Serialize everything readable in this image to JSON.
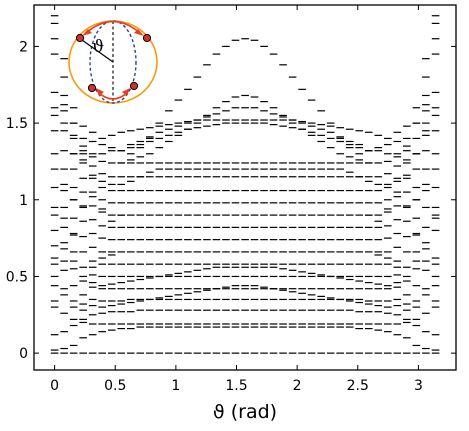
{
  "chart_data": {
    "type": "scatter",
    "marker": "horizontal-dash",
    "title": "",
    "xlabel": "ϑ (rad)",
    "ylabel": "",
    "xlim": [
      -0.17,
      3.31
    ],
    "ylim": [
      -0.11,
      2.27
    ],
    "xticks": [
      0,
      0.5,
      1,
      1.5,
      2,
      2.5,
      3
    ],
    "xtick_labels": [
      "0",
      "0.5",
      "1",
      "1.5",
      "2",
      "2.5",
      "3"
    ],
    "yticks": [
      0,
      0.5,
      1,
      1.5,
      2
    ],
    "ytick_labels": [
      "0",
      "0.5",
      "1",
      "1.5",
      "2"
    ],
    "grid": false,
    "theta_values": [
      0,
      0.0785,
      0.157,
      0.2355,
      0.314,
      0.3925,
      0.471,
      0.5495,
      0.628,
      0.7065,
      0.785,
      0.8635,
      0.942,
      1.0205,
      1.099,
      1.1775,
      1.256,
      1.3345,
      1.413,
      1.4915,
      1.5708,
      1.6485,
      1.727,
      1.8055,
      1.884,
      1.9625,
      2.041,
      2.1195,
      2.198,
      2.2765,
      2.355,
      2.4335,
      2.512,
      2.5905,
      2.669,
      2.7475,
      2.826,
      2.9045,
      2.983,
      3.0615,
      3.1416
    ],
    "series": [
      {
        "y": [
          0,
          0,
          0,
          0,
          0,
          0,
          0,
          0,
          0,
          0,
          0,
          0,
          0,
          0,
          0,
          0,
          0,
          0,
          0,
          0,
          0,
          0,
          0,
          0,
          0,
          0,
          0,
          0,
          0,
          0,
          0,
          0,
          0,
          0,
          0,
          0,
          0,
          0,
          0,
          0,
          0
        ]
      },
      {
        "y": [
          0.02,
          0.03,
          0.05,
          0.1,
          0.12,
          0.14,
          0.15,
          0.16,
          0.16,
          0.17,
          0.17,
          0.17,
          0.17,
          0.17,
          0.17,
          0.17,
          0.17,
          0.17,
          0.17,
          0.17,
          0.17,
          0.17,
          0.17,
          0.17,
          0.17,
          0.17,
          0.17,
          0.17,
          0.17,
          0.17,
          0.17,
          0.17,
          0.16,
          0.16,
          0.15,
          0.14,
          0.12,
          0.1,
          0.05,
          0.03,
          0.02
        ]
      },
      {
        "y": [
          0.3,
          0.26,
          0.22,
          0.2,
          0.19,
          0.19,
          0.19,
          0.19,
          0.19,
          0.19,
          0.19,
          0.19,
          0.19,
          0.19,
          0.19,
          0.19,
          0.19,
          0.19,
          0.19,
          0.19,
          0.19,
          0.19,
          0.19,
          0.19,
          0.19,
          0.19,
          0.19,
          0.19,
          0.19,
          0.19,
          0.19,
          0.19,
          0.19,
          0.19,
          0.19,
          0.19,
          0.19,
          0.2,
          0.22,
          0.26,
          0.3
        ]
      },
      {
        "y": [
          0.5,
          0.42,
          0.34,
          0.28,
          0.25,
          0.26,
          0.27,
          0.27,
          0.27,
          0.28,
          0.28,
          0.28,
          0.28,
          0.28,
          0.28,
          0.28,
          0.28,
          0.28,
          0.28,
          0.28,
          0.28,
          0.28,
          0.28,
          0.28,
          0.28,
          0.28,
          0.28,
          0.28,
          0.28,
          0.28,
          0.28,
          0.28,
          0.27,
          0.27,
          0.27,
          0.26,
          0.25,
          0.28,
          0.34,
          0.42,
          0.5
        ]
      },
      {
        "y": [
          0.62,
          0.54,
          0.44,
          0.38,
          0.35,
          0.34,
          0.34,
          0.34,
          0.35,
          0.35,
          0.35,
          0.35,
          0.35,
          0.35,
          0.35,
          0.35,
          0.35,
          0.35,
          0.35,
          0.35,
          0.35,
          0.35,
          0.35,
          0.35,
          0.35,
          0.35,
          0.35,
          0.35,
          0.35,
          0.35,
          0.35,
          0.35,
          0.35,
          0.34,
          0.34,
          0.34,
          0.35,
          0.38,
          0.44,
          0.54,
          0.62
        ]
      },
      {
        "y": [
          0.8,
          0.68,
          0.55,
          0.47,
          0.43,
          0.42,
          0.42,
          0.42,
          0.42,
          0.42,
          0.42,
          0.42,
          0.42,
          0.42,
          0.42,
          0.42,
          0.42,
          0.42,
          0.42,
          0.42,
          0.42,
          0.42,
          0.42,
          0.42,
          0.42,
          0.42,
          0.42,
          0.42,
          0.42,
          0.42,
          0.42,
          0.42,
          0.42,
          0.42,
          0.42,
          0.42,
          0.43,
          0.47,
          0.55,
          0.68,
          0.8
        ]
      },
      {
        "y": [
          0.95,
          0.82,
          0.66,
          0.56,
          0.51,
          0.5,
          0.5,
          0.5,
          0.5,
          0.5,
          0.5,
          0.5,
          0.5,
          0.5,
          0.5,
          0.5,
          0.5,
          0.5,
          0.5,
          0.5,
          0.5,
          0.5,
          0.5,
          0.5,
          0.5,
          0.5,
          0.5,
          0.5,
          0.5,
          0.5,
          0.5,
          0.5,
          0.5,
          0.5,
          0.5,
          0.5,
          0.51,
          0.56,
          0.66,
          0.82,
          0.95
        ]
      },
      {
        "y": [
          1.08,
          0.95,
          0.77,
          0.66,
          0.6,
          0.58,
          0.58,
          0.58,
          0.58,
          0.58,
          0.58,
          0.58,
          0.58,
          0.58,
          0.58,
          0.58,
          0.58,
          0.58,
          0.58,
          0.58,
          0.58,
          0.58,
          0.58,
          0.58,
          0.58,
          0.58,
          0.58,
          0.58,
          0.58,
          0.58,
          0.58,
          0.58,
          0.58,
          0.58,
          0.58,
          0.58,
          0.6,
          0.66,
          0.77,
          0.95,
          1.08
        ]
      },
      {
        "y": [
          1.3,
          1.06,
          0.88,
          0.76,
          0.69,
          0.66,
          0.66,
          0.66,
          0.66,
          0.66,
          0.66,
          0.66,
          0.66,
          0.66,
          0.66,
          0.66,
          0.66,
          0.66,
          0.66,
          0.66,
          0.66,
          0.66,
          0.66,
          0.66,
          0.66,
          0.66,
          0.66,
          0.66,
          0.66,
          0.66,
          0.66,
          0.66,
          0.66,
          0.66,
          0.66,
          0.66,
          0.69,
          0.76,
          0.88,
          1.06,
          1.3
        ]
      },
      {
        "y": [
          1.45,
          1.2,
          1.0,
          0.86,
          0.78,
          0.75,
          0.74,
          0.74,
          0.74,
          0.74,
          0.74,
          0.74,
          0.74,
          0.74,
          0.74,
          0.74,
          0.74,
          0.74,
          0.74,
          0.74,
          0.74,
          0.74,
          0.74,
          0.74,
          0.74,
          0.74,
          0.74,
          0.74,
          0.74,
          0.74,
          0.74,
          0.74,
          0.74,
          0.74,
          0.74,
          0.75,
          0.78,
          0.86,
          1.0,
          1.2,
          1.45
        ]
      },
      {
        "y": [
          1.6,
          1.32,
          1.08,
          0.95,
          0.87,
          0.83,
          0.82,
          0.82,
          0.82,
          0.82,
          0.82,
          0.82,
          0.82,
          0.82,
          0.82,
          0.82,
          0.82,
          0.82,
          0.82,
          0.82,
          0.82,
          0.82,
          0.82,
          0.82,
          0.82,
          0.82,
          0.82,
          0.82,
          0.82,
          0.82,
          0.82,
          0.82,
          0.82,
          0.82,
          0.82,
          0.83,
          0.87,
          0.95,
          1.08,
          1.32,
          1.6
        ]
      },
      {
        "y": [
          1.7,
          1.45,
          1.2,
          1.05,
          0.96,
          0.92,
          0.9,
          0.9,
          0.9,
          0.9,
          0.9,
          0.9,
          0.9,
          0.9,
          0.9,
          0.9,
          0.9,
          0.9,
          0.9,
          0.9,
          0.9,
          0.9,
          0.9,
          0.9,
          0.9,
          0.9,
          0.9,
          0.9,
          0.9,
          0.9,
          0.9,
          0.9,
          0.9,
          0.9,
          0.9,
          0.92,
          0.96,
          1.05,
          1.2,
          1.45,
          1.7
        ]
      },
      {
        "y": [
          1.95,
          1.58,
          1.3,
          1.14,
          1.05,
          1.0,
          0.98,
          0.98,
          0.98,
          0.98,
          0.98,
          0.98,
          0.98,
          0.98,
          0.98,
          0.98,
          0.98,
          0.98,
          0.98,
          0.98,
          0.98,
          0.98,
          0.98,
          0.98,
          0.98,
          0.98,
          0.98,
          0.98,
          0.98,
          0.98,
          0.98,
          0.98,
          0.98,
          0.98,
          0.98,
          1.0,
          1.05,
          1.14,
          1.3,
          1.58,
          1.95
        ]
      },
      {
        "y": [
          2.05,
          1.68,
          1.4,
          1.24,
          1.14,
          1.08,
          1.06,
          1.06,
          1.06,
          1.06,
          1.06,
          1.06,
          1.06,
          1.06,
          1.06,
          1.06,
          1.06,
          1.06,
          1.06,
          1.06,
          1.06,
          1.06,
          1.06,
          1.06,
          1.06,
          1.06,
          1.06,
          1.06,
          1.06,
          1.06,
          1.06,
          1.06,
          1.06,
          1.06,
          1.06,
          1.08,
          1.14,
          1.24,
          1.4,
          1.68,
          2.05
        ]
      },
      {
        "y": [
          2.15,
          1.8,
          1.5,
          1.32,
          1.22,
          1.17,
          1.15,
          1.15,
          1.15,
          1.15,
          1.15,
          1.15,
          1.15,
          1.15,
          1.15,
          1.15,
          1.15,
          1.15,
          1.15,
          1.15,
          1.15,
          1.15,
          1.15,
          1.15,
          1.15,
          1.15,
          1.15,
          1.15,
          1.15,
          1.15,
          1.15,
          1.15,
          1.15,
          1.15,
          1.15,
          1.17,
          1.22,
          1.32,
          1.5,
          1.8,
          2.15
        ]
      },
      {
        "y": [
          2.2,
          1.92,
          1.6,
          1.4,
          1.3,
          1.25,
          1.24,
          1.24,
          1.24,
          1.24,
          1.24,
          1.24,
          1.24,
          1.24,
          1.24,
          1.24,
          1.24,
          1.24,
          1.24,
          1.24,
          1.24,
          1.24,
          1.24,
          1.24,
          1.24,
          1.24,
          1.24,
          1.24,
          1.24,
          1.24,
          1.24,
          1.24,
          1.24,
          1.24,
          1.24,
          1.25,
          1.3,
          1.4,
          1.6,
          1.92,
          2.2
        ]
      },
      {
        "y": [
          1.2,
          1.5,
          1.3,
          1.26,
          1.28,
          1.3,
          1.32,
          1.32,
          1.34,
          1.36,
          1.38,
          1.4,
          1.42,
          1.44,
          1.46,
          1.47,
          1.48,
          1.49,
          1.5,
          1.5,
          1.5,
          1.5,
          1.5,
          1.49,
          1.48,
          1.47,
          1.46,
          1.44,
          1.42,
          1.4,
          1.38,
          1.36,
          1.34,
          1.32,
          1.32,
          1.3,
          1.28,
          1.26,
          1.3,
          1.5,
          1.2
        ]
      },
      {
        "y": [
          0.9,
          1.1,
          1.0,
          1.35,
          1.38,
          1.4,
          1.42,
          1.44,
          1.45,
          1.46,
          1.47,
          1.48,
          1.49,
          1.5,
          1.51,
          1.52,
          1.52,
          1.52,
          1.52,
          1.52,
          1.52,
          1.52,
          1.52,
          1.52,
          1.52,
          1.52,
          1.51,
          1.5,
          1.49,
          1.48,
          1.47,
          1.46,
          1.45,
          1.44,
          1.42,
          1.4,
          1.38,
          1.35,
          1.0,
          1.1,
          0.9
        ]
      },
      {
        "y": [
          0.7,
          0.88,
          1.42,
          1.3,
          1.16,
          1.12,
          1.1,
          1.1,
          1.12,
          1.15,
          1.18,
          1.2,
          1.2,
          1.2,
          1.2,
          1.2,
          1.2,
          1.2,
          1.2,
          1.2,
          1.2,
          1.2,
          1.2,
          1.2,
          1.2,
          1.2,
          1.2,
          1.2,
          1.2,
          1.2,
          1.2,
          1.18,
          1.15,
          1.12,
          1.1,
          1.1,
          1.12,
          1.16,
          1.3,
          1.42,
          0.88
        ]
      },
      {
        "y": [
          0.12,
          0.14,
          0.18,
          0.22,
          0.56,
          0.62,
          0.64,
          0.9,
          1.36,
          1.38,
          1.41,
          1.44,
          1.46,
          1.48,
          1.5,
          1.52,
          1.54,
          1.56,
          1.58,
          1.6,
          1.6,
          1.6,
          1.58,
          1.56,
          1.54,
          1.52,
          1.5,
          1.48,
          1.46,
          1.44,
          1.41,
          1.38,
          1.36,
          0.9,
          0.64,
          0.62,
          0.56,
          0.22,
          0.18,
          0.14,
          0.12
        ]
      },
      {
        "y": [
          0.44,
          0.6,
          0.78,
          0.96,
          1.02,
          0.94,
          0.86,
          1.24,
          1.26,
          1.28,
          1.3,
          1.34,
          1.38,
          1.42,
          1.46,
          1.5,
          1.55,
          1.6,
          1.64,
          1.67,
          1.68,
          1.67,
          1.64,
          1.6,
          1.55,
          1.5,
          1.46,
          1.42,
          1.38,
          1.34,
          1.3,
          1.28,
          1.26,
          1.24,
          0.86,
          0.94,
          1.02,
          0.96,
          0.78,
          0.6,
          0.44
        ]
      },
      {
        "y": [
          1.55,
          1.62,
          1.5,
          1.48,
          1.44,
          1.36,
          1.34,
          1.32,
          1.3,
          1.34,
          1.4,
          1.5,
          1.58,
          1.65,
          1.72,
          1.8,
          1.88,
          1.95,
          2.0,
          2.04,
          2.05,
          2.04,
          2.0,
          1.95,
          1.88,
          1.8,
          1.72,
          1.65,
          1.58,
          1.5,
          1.4,
          1.34,
          1.3,
          1.32,
          1.34,
          1.36,
          1.44,
          1.48,
          1.5,
          1.62,
          1.55
        ]
      },
      {
        "y": [
          0.58,
          0.72,
          0.6,
          0.5,
          0.46,
          0.44,
          0.45,
          0.46,
          0.47,
          0.48,
          0.49,
          0.5,
          0.51,
          0.52,
          0.53,
          0.54,
          0.55,
          0.56,
          0.56,
          0.56,
          0.56,
          0.56,
          0.56,
          0.56,
          0.55,
          0.54,
          0.53,
          0.52,
          0.51,
          0.5,
          0.49,
          0.48,
          0.47,
          0.46,
          0.45,
          0.44,
          0.46,
          0.5,
          0.6,
          0.72,
          0.58
        ]
      },
      {
        "y": [
          0.34,
          0.38,
          0.3,
          0.32,
          0.31,
          0.3,
          0.31,
          0.32,
          0.33,
          0.34,
          0.35,
          0.36,
          0.37,
          0.38,
          0.39,
          0.4,
          0.41,
          0.42,
          0.43,
          0.44,
          0.44,
          0.44,
          0.43,
          0.42,
          0.41,
          0.4,
          0.39,
          0.38,
          0.37,
          0.36,
          0.35,
          0.34,
          0.33,
          0.32,
          0.31,
          0.3,
          0.31,
          0.32,
          0.3,
          0.38,
          0.34
        ]
      }
    ]
  },
  "inset": {
    "angle_symbol": "ϑ",
    "ellipse_color": "#f39c12",
    "arrow_color": "#e8401c",
    "dashed_color": "#2c3e9f",
    "axis_color": "#000000",
    "point_color": "#d0312d"
  }
}
